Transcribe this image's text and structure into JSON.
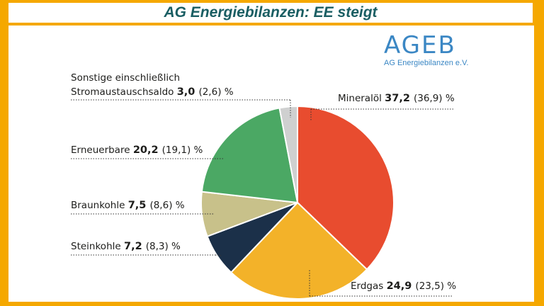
{
  "header": {
    "title": "AG Energiebilanzen: EE steigt"
  },
  "logo": {
    "main": "AGEB",
    "sub": "AG Energiebilanzen e.V."
  },
  "chart_data": {
    "type": "pie",
    "unit": "%",
    "slices": [
      {
        "label": "Mineralöl",
        "label_line2": "",
        "value": 37.2,
        "value_text": "37,2",
        "previous_text": "(36,9)",
        "color": "#e84c2f"
      },
      {
        "label": "Erdgas",
        "label_line2": "",
        "value": 24.9,
        "value_text": "24,9",
        "previous_text": "(23,5)",
        "color": "#f3b229"
      },
      {
        "label": "Steinkohle",
        "label_line2": "",
        "value": 7.2,
        "value_text": "7,2",
        "previous_text": "(8,3)",
        "color": "#1b3049"
      },
      {
        "label": "Braunkohle",
        "label_line2": "",
        "value": 7.5,
        "value_text": "7,5",
        "previous_text": "(8,6)",
        "color": "#c8c18a"
      },
      {
        "label": "Erneuerbare",
        "label_line2": "",
        "value": 20.2,
        "value_text": "20,2",
        "previous_text": "(19,1)",
        "color": "#4ba864"
      },
      {
        "label": "Sonstige einschließlich",
        "label_line2": "Stromaustauschsaldo",
        "value": 3.0,
        "value_text": "3,0",
        "previous_text": "(2,6)",
        "color": "#cfd0d0"
      }
    ]
  }
}
